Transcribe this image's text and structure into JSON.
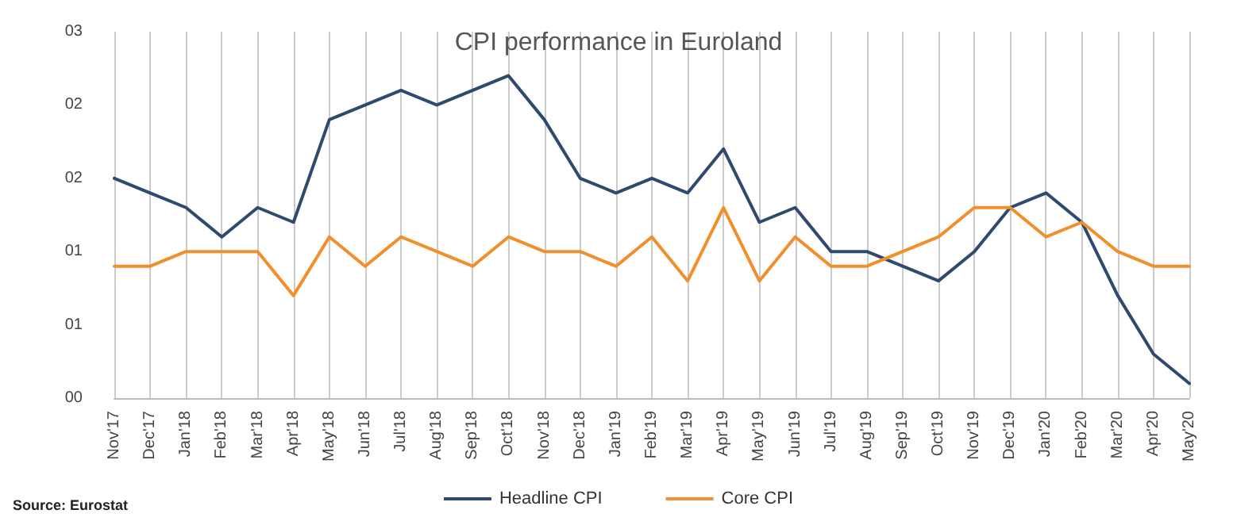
{
  "chart_data": {
    "type": "line",
    "title": "CPI performance in Euroland",
    "categories": [
      "Nov'17",
      "Dec'17",
      "Jan'18",
      "Feb'18",
      "Mar'18",
      "Apr'18",
      "May'18",
      "Jun'18",
      "Jul'18",
      "Aug'18",
      "Sep'18",
      "Oct'18",
      "Nov'18",
      "Dec'18",
      "Jan'19",
      "Feb'19",
      "Mar'19",
      "Apr'19",
      "May'19",
      "Jun'19",
      "Jul'19",
      "Aug'19",
      "Sep'19",
      "Oct'19",
      "Nov'19",
      "Dec'19",
      "Jan'20",
      "Feb'20",
      "Mar'20",
      "Apr'20",
      "May'20"
    ],
    "series": [
      {
        "name": "Headline CPI",
        "color": "#2e4a6e",
        "values": [
          1.5,
          1.4,
          1.3,
          1.1,
          1.3,
          1.2,
          1.9,
          2.0,
          2.1,
          2.0,
          2.1,
          2.2,
          1.9,
          1.5,
          1.4,
          1.5,
          1.4,
          1.7,
          1.2,
          1.3,
          1.0,
          1.0,
          0.9,
          0.8,
          1.0,
          1.3,
          1.4,
          1.2,
          0.7,
          0.3,
          0.1
        ]
      },
      {
        "name": "Core CPI",
        "color": "#f28e2b",
        "values": [
          0.9,
          0.9,
          1.0,
          1.0,
          1.0,
          0.7,
          1.1,
          0.9,
          1.1,
          1.0,
          0.9,
          1.1,
          1.0,
          1.0,
          0.9,
          1.1,
          0.8,
          1.3,
          0.8,
          1.1,
          0.9,
          0.9,
          1.0,
          1.1,
          1.3,
          1.3,
          1.1,
          1.2,
          1.0,
          0.9,
          0.9
        ]
      }
    ],
    "ylim": [
      0,
      2.5
    ],
    "yticks": [
      {
        "value": 0,
        "label": "00"
      },
      {
        "value": 0.5,
        "label": "01"
      },
      {
        "value": 1,
        "label": "01"
      },
      {
        "value": 1.5,
        "label": "02"
      },
      {
        "value": 2,
        "label": "02"
      },
      {
        "value": 2.5,
        "label": "03"
      }
    ],
    "grid": "x",
    "legend": "bottom",
    "marker": "none",
    "line_style": "solid",
    "annotations": [
      "Source: Eurostat"
    ]
  }
}
